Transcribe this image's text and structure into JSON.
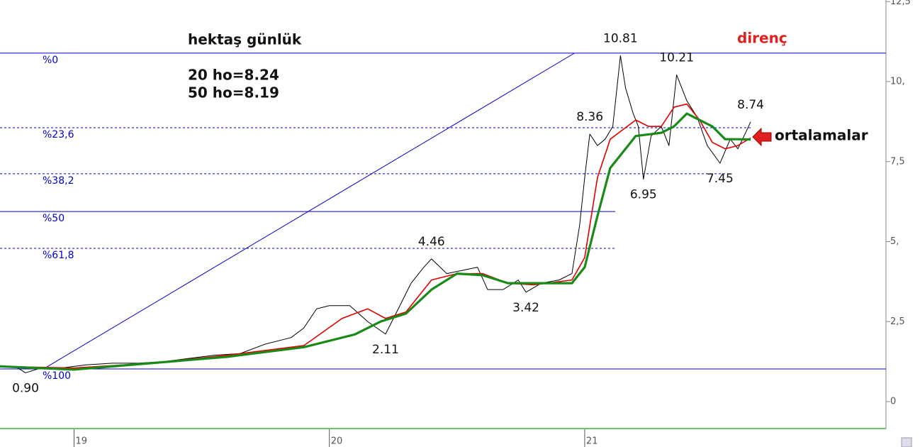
{
  "chart_data": {
    "type": "line",
    "title": "hektaş günlük",
    "notes": [
      "20 ho=8.24",
      "50 ho=8.19"
    ],
    "resistance_label": "direnç",
    "average_label": "ortalamalar",
    "xlim": [
      18.71,
      22.18
    ],
    "xticks": [
      19,
      20,
      21
    ],
    "ylim": [
      -0.82,
      12.55
    ],
    "yticks": [
      {
        "value": 0,
        "label": "0"
      },
      {
        "value": 2.5,
        "label": "2,5"
      },
      {
        "value": 5,
        "label": "5,"
      },
      {
        "value": 7.5,
        "label": "7,5"
      },
      {
        "value": 10,
        "label": "10,"
      },
      {
        "value": 12.5,
        "label": "12,5"
      }
    ],
    "series": [
      {
        "color": "#000000",
        "width": 1,
        "x": [
          18.71,
          18.78,
          18.81,
          18.87,
          18.95,
          19.05,
          19.15,
          19.25,
          19.35,
          19.45,
          19.55,
          19.65,
          19.75,
          19.85,
          19.9,
          19.95,
          20.0,
          20.08,
          20.15,
          20.22,
          20.27,
          20.32,
          20.37,
          20.4,
          20.46,
          20.52,
          20.58,
          20.62,
          20.68,
          20.74,
          20.77,
          20.83,
          20.9,
          20.95,
          20.98,
          21.0,
          21.02,
          21.05,
          21.08,
          21.11,
          21.14,
          21.16,
          21.19,
          21.21,
          21.23,
          21.26,
          21.3,
          21.33,
          21.36,
          21.4,
          21.44,
          21.48,
          21.53,
          21.57,
          21.6,
          21.63,
          21.65
        ],
        "values": [
          1.1,
          1.05,
          0.9,
          1.05,
          1.05,
          1.15,
          1.2,
          1.2,
          1.25,
          1.35,
          1.45,
          1.5,
          1.8,
          2.0,
          2.3,
          2.9,
          3.0,
          3.0,
          2.5,
          2.11,
          2.9,
          3.7,
          4.2,
          4.46,
          4.0,
          4.1,
          4.2,
          3.5,
          3.5,
          3.8,
          3.42,
          3.7,
          3.8,
          4.0,
          5.5,
          7.0,
          8.36,
          8.0,
          8.2,
          8.6,
          10.81,
          9.8,
          9.0,
          8.6,
          6.95,
          8.3,
          8.6,
          8.0,
          10.21,
          9.4,
          8.9,
          8.0,
          7.45,
          8.2,
          7.9,
          8.4,
          8.74
        ]
      },
      {
        "color": "#e00000",
        "width": 1.6,
        "x": [
          18.71,
          19.0,
          19.3,
          19.6,
          19.9,
          20.05,
          20.15,
          20.22,
          20.3,
          20.4,
          20.5,
          20.6,
          20.7,
          20.8,
          20.95,
          21.0,
          21.05,
          21.1,
          21.15,
          21.2,
          21.25,
          21.3,
          21.35,
          21.4,
          21.45,
          21.5,
          21.55,
          21.6,
          21.65
        ],
        "values": [
          1.1,
          1.05,
          1.2,
          1.45,
          1.75,
          2.6,
          2.9,
          2.6,
          2.8,
          3.8,
          4.0,
          4.0,
          3.7,
          3.65,
          3.8,
          4.5,
          7.0,
          8.2,
          8.5,
          8.8,
          8.6,
          8.6,
          9.2,
          9.3,
          8.8,
          8.1,
          7.9,
          8.0,
          8.24
        ]
      },
      {
        "color": "#188a18",
        "width": 3.2,
        "x": [
          18.71,
          19.0,
          19.3,
          19.6,
          19.9,
          20.1,
          20.2,
          20.3,
          20.4,
          20.5,
          20.6,
          20.7,
          20.8,
          20.95,
          21.0,
          21.05,
          21.1,
          21.15,
          21.2,
          21.3,
          21.35,
          21.4,
          21.5,
          21.55,
          21.6,
          21.65
        ],
        "values": [
          1.1,
          1.0,
          1.2,
          1.4,
          1.7,
          2.1,
          2.5,
          2.75,
          3.5,
          4.0,
          3.95,
          3.7,
          3.7,
          3.7,
          4.2,
          5.8,
          7.3,
          7.8,
          8.3,
          8.4,
          8.6,
          9.0,
          8.6,
          8.2,
          8.2,
          8.19
        ]
      }
    ],
    "fib_color": "#0000cc",
    "fib_levels": [
      {
        "label": "%0",
        "value": 10.89,
        "style": "solid",
        "x_end": 22.18
      },
      {
        "label": "%23,6",
        "value": 8.56,
        "style": "dashed",
        "x_end": 21.65
      },
      {
        "label": "%38,2",
        "value": 7.12,
        "style": "dashed",
        "x_end": 21.57
      },
      {
        "label": "%50",
        "value": 5.94,
        "style": "solid",
        "x_end": 21.12
      },
      {
        "label": "%61,8",
        "value": 4.79,
        "style": "dashed",
        "x_end": 21.12
      },
      {
        "label": "%100",
        "value": 1.02,
        "style": "solid",
        "x_end": 22.18
      }
    ],
    "trend_line": {
      "x": [
        18.88,
        20.96
      ],
      "values": [
        1.02,
        10.89
      ]
    },
    "annotations": [
      {
        "x": 18.81,
        "value": 0.9,
        "label": "0.90",
        "placement": "below"
      },
      {
        "x": 20.22,
        "value": 2.11,
        "label": "2.11",
        "placement": "below"
      },
      {
        "x": 20.4,
        "value": 4.46,
        "label": "4.46",
        "placement": "above"
      },
      {
        "x": 20.77,
        "value": 3.42,
        "label": "3.42",
        "placement": "below"
      },
      {
        "x": 21.02,
        "value": 8.36,
        "label": "8.36",
        "placement": "above"
      },
      {
        "x": 21.14,
        "value": 10.81,
        "label": "10.81",
        "placement": "above"
      },
      {
        "x": 21.23,
        "value": 6.95,
        "label": "6.95",
        "placement": "below"
      },
      {
        "x": 21.36,
        "value": 10.21,
        "label": "10.21",
        "placement": "above"
      },
      {
        "x": 21.53,
        "value": 7.45,
        "label": "7.45",
        "placement": "below"
      },
      {
        "x": 21.65,
        "value": 8.74,
        "label": "8.74",
        "placement": "above"
      }
    ]
  }
}
